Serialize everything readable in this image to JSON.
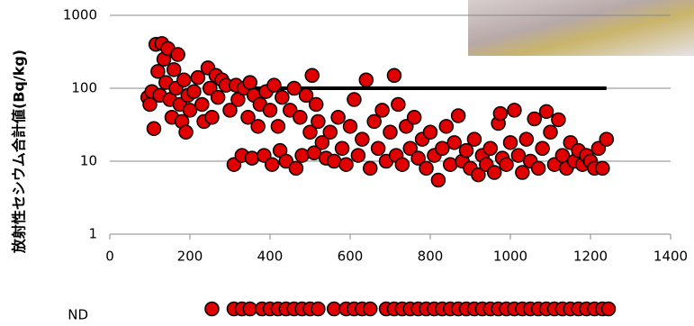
{
  "chart_data": {
    "type": "scatter",
    "y_label": "放射性セシウム合計値(Bq/kg)",
    "xlim": [
      0,
      1400
    ],
    "xticks": [
      0,
      200,
      400,
      600,
      800,
      1000,
      1200,
      1400
    ],
    "ylim": [
      1,
      1000
    ],
    "yticks": [
      1,
      10,
      100,
      1000
    ],
    "log_y": true,
    "grid": true,
    "color": "#e00000",
    "x": [
      95,
      100,
      105,
      110,
      115,
      120,
      125,
      130,
      135,
      140,
      145,
      150,
      155,
      160,
      165,
      170,
      175,
      180,
      185,
      190,
      195,
      200,
      210,
      220,
      230,
      235,
      245,
      250,
      255,
      265,
      270,
      280,
      290,
      300,
      310,
      315,
      320,
      330,
      335,
      345,
      350,
      355,
      360,
      370,
      375,
      385,
      390,
      400,
      405,
      410,
      420,
      425,
      430,
      440,
      450,
      460,
      465,
      475,
      480,
      490,
      500,
      505,
      510,
      515,
      520,
      530,
      540,
      550,
      560,
      570,
      580,
      590,
      600,
      610,
      620,
      630,
      640,
      650,
      660,
      670,
      680,
      690,
      700,
      710,
      715,
      720,
      730,
      740,
      750,
      760,
      770,
      780,
      790,
      800,
      810,
      820,
      830,
      840,
      850,
      860,
      870,
      880,
      890,
      900,
      910,
      920,
      930,
      940,
      950,
      960,
      970,
      975,
      980,
      990,
      1000,
      1010,
      1020,
      1030,
      1040,
      1050,
      1060,
      1070,
      1080,
      1090,
      1100,
      1110,
      1120,
      1130,
      1140,
      1150,
      1160,
      1170,
      1180,
      1190,
      1200,
      1210,
      1220,
      1230,
      1240
    ],
    "values": [
      75,
      60,
      90,
      28,
      400,
      170,
      80,
      410,
      250,
      120,
      350,
      70,
      40,
      180,
      100,
      290,
      60,
      35,
      130,
      25,
      80,
      50,
      90,
      140,
      60,
      35,
      190,
      100,
      40,
      150,
      75,
      130,
      110,
      50,
      9,
      110,
      70,
      12,
      100,
      40,
      120,
      11,
      80,
      30,
      60,
      12,
      90,
      50,
      9,
      110,
      30,
      14,
      75,
      10,
      50,
      100,
      8,
      40,
      12,
      80,
      25,
      150,
      13,
      60,
      35,
      18,
      11,
      25,
      10,
      40,
      15,
      9,
      30,
      70,
      12,
      20,
      130,
      8,
      35,
      15,
      50,
      10,
      25,
      150,
      12,
      60,
      9,
      30,
      15,
      40,
      11,
      20,
      8,
      25,
      12,
      5.5,
      15,
      30,
      9,
      18,
      42,
      10,
      14,
      8,
      20,
      6.5,
      12,
      9,
      15,
      7,
      33,
      45,
      11,
      9,
      18,
      50,
      12,
      7,
      20,
      10,
      38,
      8,
      15,
      48,
      25,
      9,
      37,
      12,
      8,
      18,
      10,
      14,
      9,
      12,
      10,
      8,
      15,
      8,
      20
    ],
    "reference_line": {
      "y": 100,
      "x": [
        360,
        1240
      ]
    },
    "nd": {
      "label": "ND",
      "x": [
        255,
        310,
        330,
        350,
        380,
        400,
        420,
        440,
        460,
        480,
        500,
        520,
        560,
        590,
        610,
        630,
        650,
        690,
        710,
        730,
        750,
        770,
        790,
        810,
        830,
        850,
        870,
        890,
        910,
        930,
        950,
        970,
        990,
        1010,
        1030,
        1050,
        1070,
        1090,
        1110,
        1130,
        1150,
        1170,
        1190,
        1210,
        1230,
        1245
      ]
    }
  }
}
